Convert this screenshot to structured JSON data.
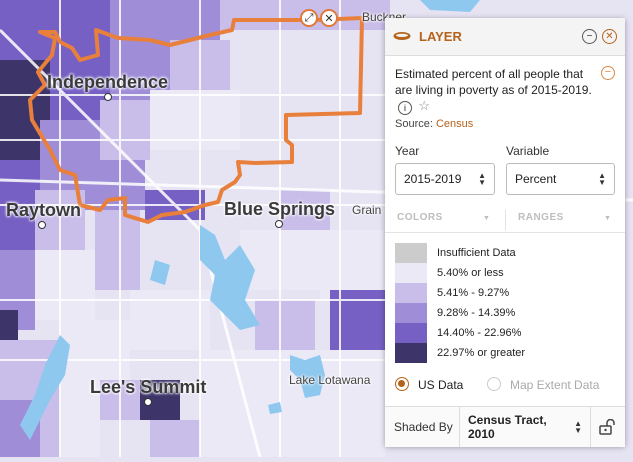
{
  "map": {
    "labels": {
      "independence": "Independence",
      "buckner": "Buckner",
      "raytown": "Raytown",
      "blue_springs": "Blue Springs",
      "grain": "Grain",
      "lees_summit": "Lee's Summit",
      "lake_lotawana": "Lake Lotawana"
    },
    "boundary_color": "#e8803c",
    "water_color": "#8ec8ef"
  },
  "panel": {
    "title": "LAYER",
    "description": "Estimated percent of all people that are living in poverty as of 2015-2019.",
    "source_label": "Source:",
    "source_link": "Census",
    "year_label": "Year",
    "year_value": "2015-2019",
    "variable_label": "Variable",
    "variable_value": "Percent",
    "tabs": {
      "colors": "COLORS",
      "ranges": "RANGES"
    },
    "legend": [
      {
        "label": "Insufficient Data",
        "color": "#cccccc"
      },
      {
        "label": "5.40% or less",
        "color": "#ece9f7"
      },
      {
        "label": "5.41% - 9.27%",
        "color": "#c9bde9"
      },
      {
        "label": "9.28% - 14.39%",
        "color": "#9f8dd8"
      },
      {
        "label": "14.40% - 22.96%",
        "color": "#7660c4"
      },
      {
        "label": "22.97% or greater",
        "color": "#3d3569"
      }
    ],
    "radio_us": "US Data",
    "radio_extent": "Map Extent Data",
    "shaded_by_label": "Shaded By",
    "shaded_by_value": "Census Tract, 2010"
  },
  "icons": {
    "layer": "layer-stack-icon",
    "minimize": "minus-circle-icon",
    "close": "close-circle-icon",
    "info": "info-icon",
    "favorite": "star-icon",
    "lock": "unlock-icon"
  }
}
